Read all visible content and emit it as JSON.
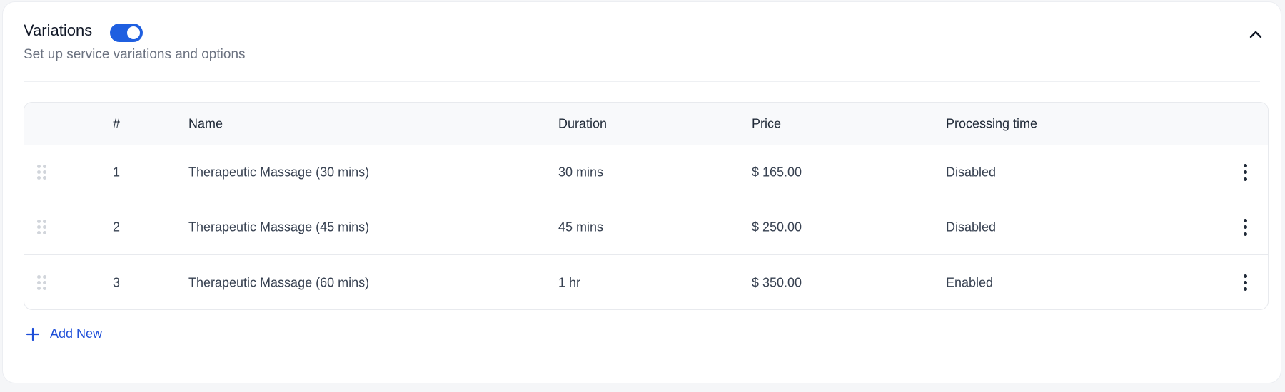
{
  "section": {
    "title": "Variations",
    "subtitle": "Set up service variations and options",
    "toggle_on": true,
    "accent": "#1f5fe0"
  },
  "table": {
    "headers": [
      "#",
      "Name",
      "Duration",
      "Price",
      "Processing time"
    ],
    "rows": [
      {
        "num": "1",
        "name": "Therapeutic Massage (30 mins)",
        "duration": "30 mins",
        "price": "$ 165.00",
        "processing": "Disabled"
      },
      {
        "num": "2",
        "name": "Therapeutic Massage (45 mins)",
        "duration": "45 mins",
        "price": "$ 250.00",
        "processing": "Disabled"
      },
      {
        "num": "3",
        "name": "Therapeutic Massage (60 mins)",
        "duration": "1 hr",
        "price": "$ 350.00",
        "processing": "Enabled"
      }
    ]
  },
  "add_new_label": "Add New"
}
